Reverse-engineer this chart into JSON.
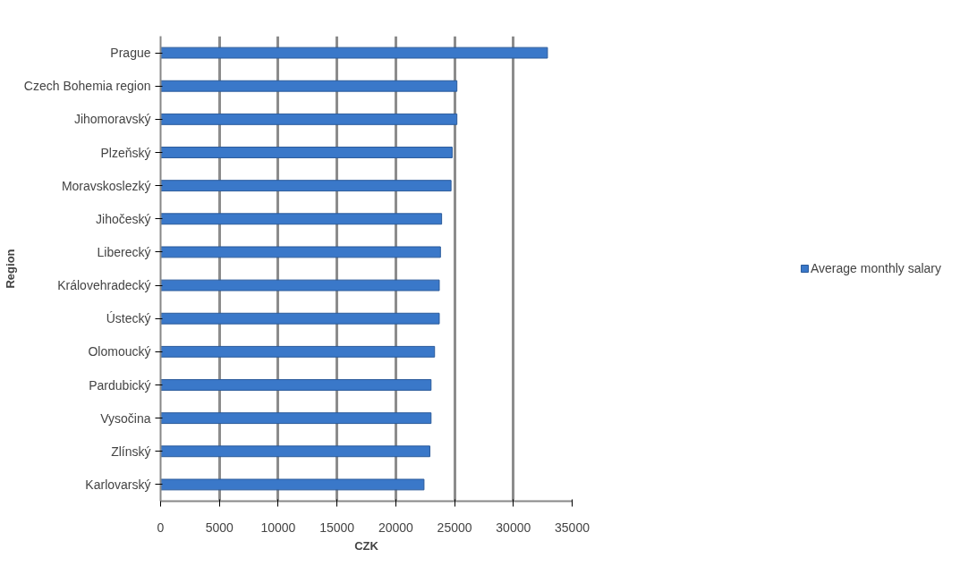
{
  "chart_data": {
    "type": "bar",
    "orientation": "horizontal",
    "xlabel": "CZK",
    "ylabel": "Region",
    "categories": [
      "Prague",
      "Czech Bohemia region",
      "Jihomoravský",
      "Plzeňský",
      "Moravskoslezký",
      "Jihočeský",
      "Liberecký",
      "Královehradecký",
      "Ústecký",
      "Olomoucký",
      "Pardubický",
      "Vysočina",
      "Zlínský",
      "Karlovarský"
    ],
    "series": [
      {
        "name": "Average monthly salary",
        "color": "#3a78c9",
        "values": [
          32900,
          25200,
          25200,
          24800,
          24700,
          23900,
          23800,
          23700,
          23700,
          23300,
          23000,
          23000,
          22900,
          22400
        ]
      }
    ],
    "xlim": [
      0,
      35000
    ],
    "xticks": [
      0,
      5000,
      10000,
      15000,
      20000,
      25000,
      30000,
      35000
    ],
    "grid": "x",
    "legend": "right"
  }
}
